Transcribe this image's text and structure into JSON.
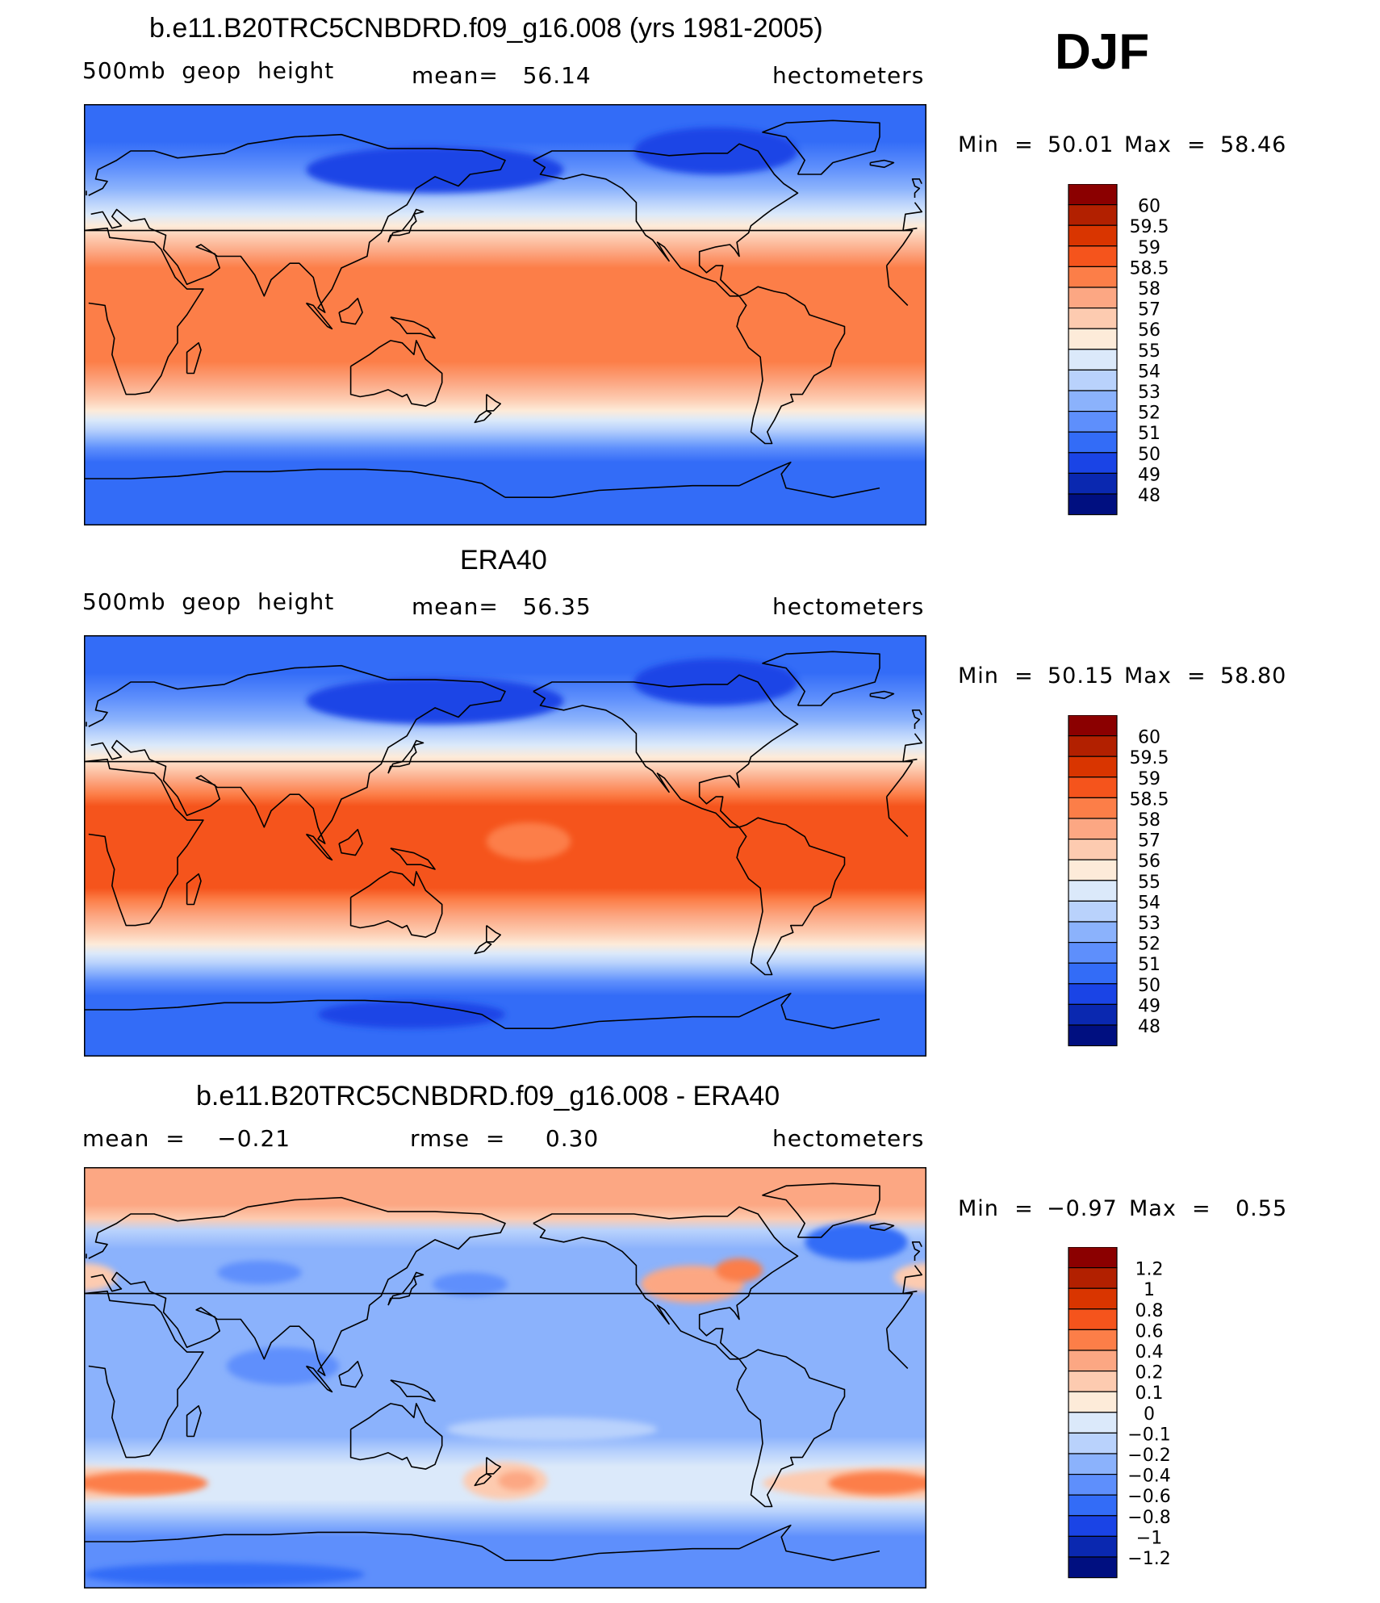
{
  "season": "DJF",
  "panels": [
    {
      "title": "b.e11.B20TRC5CNBDRD.f09_g16.008 (yrs 1981-2005)",
      "left_label": "500mb  geop  height",
      "center_label": "mean=   56.14",
      "right_label": "hectometers",
      "minmax": {
        "min_label": "Min  =",
        "min_value": "50.01",
        "max_label": "Max  =",
        "max_value": "58.46"
      },
      "colorbar": {
        "labels": [
          "60",
          "59.5",
          "59",
          "58.5",
          "58",
          "57",
          "56",
          "55",
          "54",
          "53",
          "52",
          "51",
          "50",
          "49",
          "48"
        ],
        "colors": [
          "#8b0000",
          "#b22000",
          "#d93500",
          "#f5541c",
          "#fc7e48",
          "#fca783",
          "#fdcbb0",
          "#fdebd9",
          "#dbe9fa",
          "#b9d2fc",
          "#8bb2fc",
          "#5e8ffc",
          "#336cf7",
          "#1a44e6",
          "#0a28b0",
          "#000f80"
        ]
      },
      "field": {
        "bands": [
          {
            "lat": 90,
            "color": "#336cf7"
          },
          {
            "lat": 74,
            "color": "#336cf7"
          },
          {
            "lat": 63,
            "color": "#5e8ffc"
          },
          {
            "lat": 54,
            "color": "#8bb2fc"
          },
          {
            "lat": 48,
            "color": "#b9d2fc"
          },
          {
            "lat": 43,
            "color": "#dbe9fa"
          },
          {
            "lat": 38,
            "color": "#fdebd9"
          },
          {
            "lat": 33,
            "color": "#fdcbb0"
          },
          {
            "lat": 27,
            "color": "#fca783"
          },
          {
            "lat": 20,
            "color": "#fc7e48"
          },
          {
            "lat": -20,
            "color": "#fc7e48"
          },
          {
            "lat": -29,
            "color": "#fca783"
          },
          {
            "lat": -36,
            "color": "#fdcbb0"
          },
          {
            "lat": -41,
            "color": "#fdebd9"
          },
          {
            "lat": -45,
            "color": "#dbe9fa"
          },
          {
            "lat": -49,
            "color": "#b9d2fc"
          },
          {
            "lat": -53,
            "color": "#8bb2fc"
          },
          {
            "lat": -57,
            "color": "#5e8ffc"
          },
          {
            "lat": -63,
            "color": "#336cf7"
          },
          {
            "lat": -90,
            "color": "#336cf7"
          }
        ],
        "blobs": [
          {
            "lon": 150,
            "lat": 62,
            "rx": 55,
            "ry": 10,
            "color": "#1a44e6"
          },
          {
            "lon": 270,
            "lat": 70,
            "rx": 35,
            "ry": 10,
            "color": "#1a44e6"
          }
        ]
      }
    },
    {
      "title": "ERA40",
      "left_label": "500mb  geop  height",
      "center_label": "mean=   56.35",
      "right_label": "hectometers",
      "minmax": {
        "min_label": "Min  =",
        "min_value": "50.15",
        "max_label": "Max  =",
        "max_value": "58.80"
      },
      "colorbar": {
        "labels": [
          "60",
          "59.5",
          "59",
          "58.5",
          "58",
          "57",
          "56",
          "55",
          "54",
          "53",
          "52",
          "51",
          "50",
          "49",
          "48"
        ],
        "colors": [
          "#8b0000",
          "#b22000",
          "#d93500",
          "#f5541c",
          "#fc7e48",
          "#fca783",
          "#fdcbb0",
          "#fdebd9",
          "#dbe9fa",
          "#b9d2fc",
          "#8bb2fc",
          "#5e8ffc",
          "#336cf7",
          "#1a44e6",
          "#0a28b0",
          "#000f80"
        ]
      },
      "field": {
        "bands": [
          {
            "lat": 90,
            "color": "#336cf7"
          },
          {
            "lat": 74,
            "color": "#336cf7"
          },
          {
            "lat": 63,
            "color": "#5e8ffc"
          },
          {
            "lat": 54,
            "color": "#8bb2fc"
          },
          {
            "lat": 48,
            "color": "#b9d2fc"
          },
          {
            "lat": 43,
            "color": "#dbe9fa"
          },
          {
            "lat": 38,
            "color": "#fdebd9"
          },
          {
            "lat": 33,
            "color": "#fdcbb0"
          },
          {
            "lat": 28,
            "color": "#fca783"
          },
          {
            "lat": 22,
            "color": "#fc7e48"
          },
          {
            "lat": 17,
            "color": "#f5541c"
          },
          {
            "lat": -18,
            "color": "#f5541c"
          },
          {
            "lat": -23,
            "color": "#fc7e48"
          },
          {
            "lat": -30,
            "color": "#fca783"
          },
          {
            "lat": -37,
            "color": "#fdcbb0"
          },
          {
            "lat": -42,
            "color": "#fdebd9"
          },
          {
            "lat": -46,
            "color": "#dbe9fa"
          },
          {
            "lat": -50,
            "color": "#b9d2fc"
          },
          {
            "lat": -54,
            "color": "#8bb2fc"
          },
          {
            "lat": -58,
            "color": "#5e8ffc"
          },
          {
            "lat": -64,
            "color": "#336cf7"
          },
          {
            "lat": -90,
            "color": "#336cf7"
          }
        ],
        "blobs": [
          {
            "lon": 150,
            "lat": 62,
            "rx": 55,
            "ry": 10,
            "color": "#1a44e6"
          },
          {
            "lon": 270,
            "lat": 70,
            "rx": 35,
            "ry": 10,
            "color": "#1a44e6"
          },
          {
            "lon": 190,
            "lat": 2,
            "rx": 18,
            "ry": 8,
            "color": "#fc7e48"
          },
          {
            "lon": 140,
            "lat": -72,
            "rx": 40,
            "ry": 6,
            "color": "#1a44e6"
          }
        ]
      }
    },
    {
      "title": "b.e11.B20TRC5CNBDRD.f09_g16.008 - ERA40",
      "left_label": "mean  =    −0.21",
      "center_label": "rmse  =     0.30",
      "right_label": "hectometers",
      "minmax": {
        "min_label": "Min  =",
        "min_value": "−0.97",
        "max_label": "Max  =",
        "max_value": "0.55"
      },
      "colorbar": {
        "labels": [
          "1.2",
          "1",
          "0.8",
          "0.6",
          "0.4",
          "0.2",
          "0.1",
          "0",
          "−0.1",
          "−0.2",
          "−0.4",
          "−0.6",
          "−0.8",
          "−1",
          "−1.2"
        ],
        "colors": [
          "#8b0000",
          "#b22000",
          "#d93500",
          "#f5541c",
          "#fc7e48",
          "#fca783",
          "#fdcbb0",
          "#fdebd9",
          "#dbe9fa",
          "#b9d2fc",
          "#8bb2fc",
          "#5e8ffc",
          "#336cf7",
          "#1a44e6",
          "#0a28b0",
          "#000f80"
        ]
      },
      "field": {
        "bands": [
          {
            "lat": 90,
            "color": "#fca783"
          },
          {
            "lat": 74,
            "color": "#fca783"
          },
          {
            "lat": 68,
            "color": "#fdcbb0"
          },
          {
            "lat": 63,
            "color": "#b9d2fc"
          },
          {
            "lat": 55,
            "color": "#8bb2fc"
          },
          {
            "lat": -25,
            "color": "#8bb2fc"
          },
          {
            "lat": -32,
            "color": "#b9d2fc"
          },
          {
            "lat": -38,
            "color": "#dbe9fa"
          },
          {
            "lat": -52,
            "color": "#dbe9fa"
          },
          {
            "lat": -57,
            "color": "#b9d2fc"
          },
          {
            "lat": -62,
            "color": "#8bb2fc"
          },
          {
            "lat": -68,
            "color": "#5e8ffc"
          },
          {
            "lat": -90,
            "color": "#5e8ffc"
          }
        ],
        "blobs": [
          {
            "lon": 350,
            "lat": -45,
            "rx": 60,
            "ry": 7,
            "color": "#fdcbb0"
          },
          {
            "lon": 25,
            "lat": -45,
            "rx": 28,
            "ry": 5,
            "color": "#fc7e48"
          },
          {
            "lon": 180,
            "lat": -44,
            "rx": 18,
            "ry": 8,
            "color": "#fdcbb0"
          },
          {
            "lon": 185,
            "lat": -44,
            "rx": 8,
            "ry": 4,
            "color": "#fca783"
          },
          {
            "lon": 340,
            "lat": -45,
            "rx": 22,
            "ry": 5,
            "color": "#fc7e48"
          },
          {
            "lon": 260,
            "lat": 40,
            "rx": 22,
            "ry": 8,
            "color": "#fca783"
          },
          {
            "lon": 280,
            "lat": 46,
            "rx": 10,
            "ry": 5,
            "color": "#fc7e48"
          },
          {
            "lon": 330,
            "lat": 58,
            "rx": 22,
            "ry": 8,
            "color": "#336cf7"
          },
          {
            "lon": 0,
            "lat": 43,
            "rx": 14,
            "ry": 6,
            "color": "#fdcbb0"
          },
          {
            "lon": 85,
            "lat": 5,
            "rx": 24,
            "ry": 8,
            "color": "#5e8ffc"
          },
          {
            "lon": 165,
            "lat": 40,
            "rx": 16,
            "ry": 5,
            "color": "#5e8ffc"
          },
          {
            "lon": 75,
            "lat": 45,
            "rx": 18,
            "ry": 5,
            "color": "#5e8ffc"
          },
          {
            "lon": 60,
            "lat": -84,
            "rx": 60,
            "ry": 5,
            "color": "#336cf7"
          },
          {
            "lon": 200,
            "lat": -22,
            "rx": 45,
            "ry": 5,
            "color": "#b9d2fc"
          }
        ]
      }
    }
  ]
}
